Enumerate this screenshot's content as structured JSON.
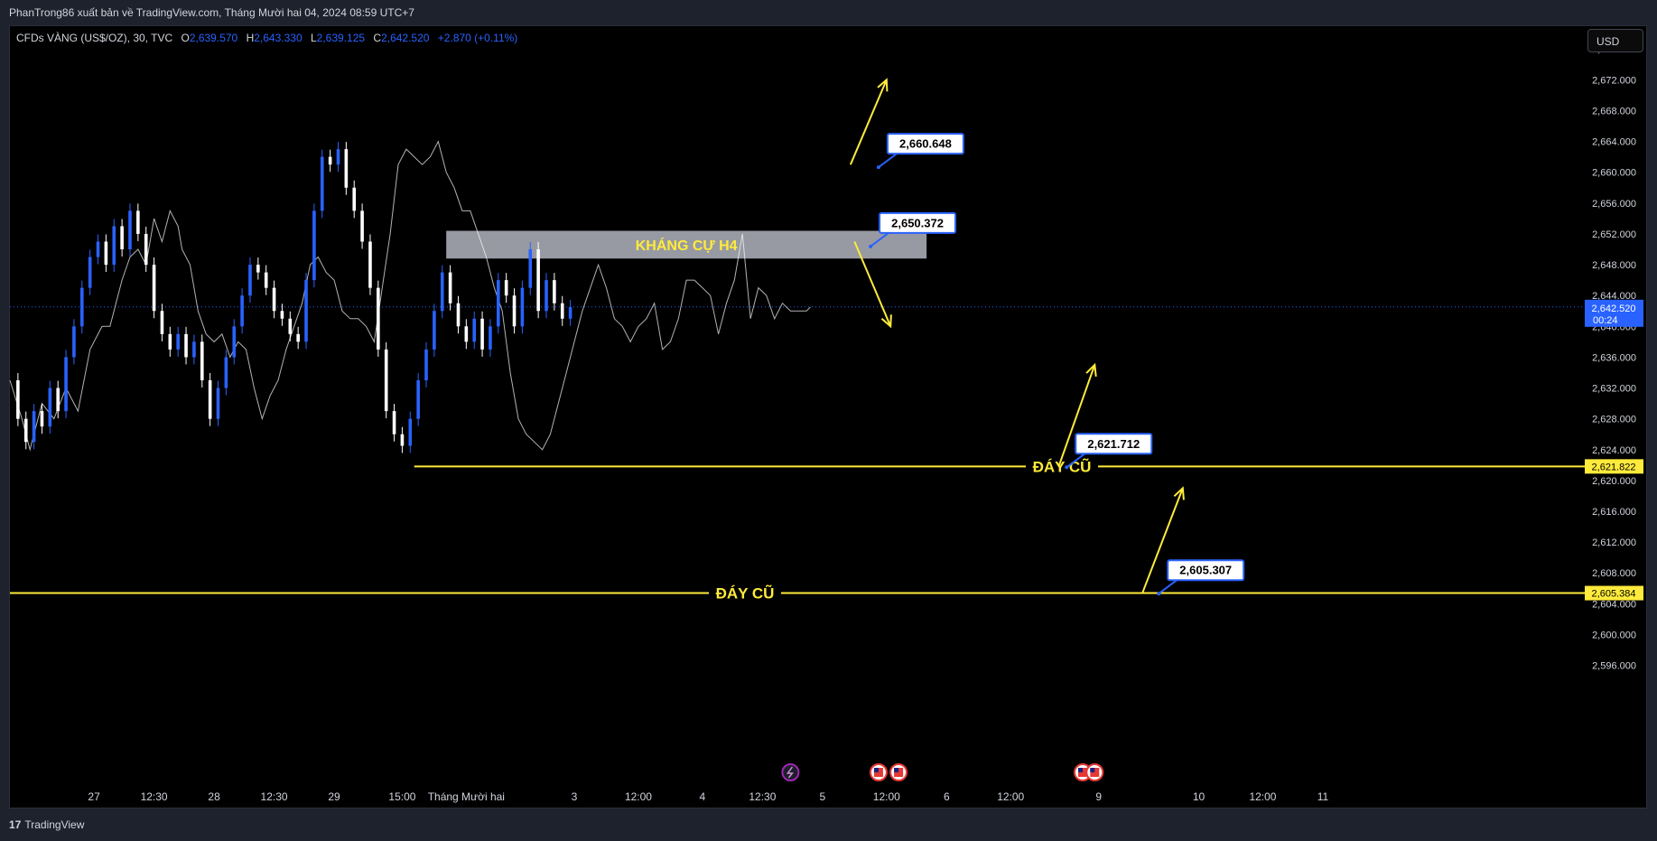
{
  "header": {
    "publish_text": "PhanTrong86 xuất bản về TradingView.com, Tháng Mười hai 04, 2024 08:59 UTC+7"
  },
  "legend": {
    "symbol": "CFDs VÀNG (US$/OZ), 30, TVC",
    "open_label": "O",
    "open": "2,639.570",
    "high_label": "H",
    "high": "2,643.330",
    "low_label": "L",
    "low": "2,639.125",
    "close_label": "C",
    "close": "2,642.520",
    "change": "+2.870 (+0.11%)"
  },
  "currency_button": {
    "label": "USD"
  },
  "footer": {
    "brand": "TradingView",
    "logo_text": "17"
  },
  "colors": {
    "background": "#000000",
    "up_candle": "#2962ff",
    "down_candle": "#ffffff",
    "annotation_yellow": "#ffeb3b",
    "resistance_zone": "#b2b5be",
    "price_line": "#2962ff"
  },
  "chart_data": {
    "type": "candlestick",
    "instrument": "CFDs VÀNG (US$/OZ)",
    "timeframe": "30",
    "source": "TVC",
    "y_range": [
      2595.6,
      2677.2
    ],
    "y_ticks": [
      2596,
      2600,
      2604,
      2608,
      2612,
      2616,
      2620,
      2624,
      2628,
      2632,
      2636,
      2640,
      2644,
      2648,
      2652,
      2656,
      2660,
      2664,
      2668,
      2672,
      2676
    ],
    "y_tick_labels": [
      "2,596.000",
      "2,600.000",
      "2,604.000",
      "2,608.000",
      "2,612.000",
      "2,616.000",
      "2,620.000",
      "2,624.000",
      "2,628.000",
      "2,632.000",
      "2,636.000",
      "2,640.000",
      "2,644.000",
      "2,648.000",
      "2,652.000",
      "2,656.000",
      "2,660.000",
      "2,664.000",
      "2,668.000",
      "2,672.000",
      "2,676.000"
    ],
    "x_range": [
      -21,
      314
    ],
    "x_ticks": [
      {
        "i": 0,
        "label": "27"
      },
      {
        "i": 15,
        "label": "12:30"
      },
      {
        "i": 30,
        "label": "28"
      },
      {
        "i": 45,
        "label": "12:30"
      },
      {
        "i": 60,
        "label": "29"
      },
      {
        "i": 77,
        "label": "15:00"
      },
      {
        "i": 93,
        "label": "Tháng Mười hai"
      },
      {
        "i": 120,
        "label": "3"
      },
      {
        "i": 136,
        "label": "12:00"
      },
      {
        "i": 152,
        "label": "4"
      },
      {
        "i": 167,
        "label": "12:30"
      },
      {
        "i": 182,
        "label": "5"
      },
      {
        "i": 198,
        "label": "12:00"
      },
      {
        "i": 213,
        "label": "6"
      },
      {
        "i": 229,
        "label": "12:00"
      },
      {
        "i": 251,
        "label": "9"
      },
      {
        "i": 276,
        "label": "10"
      },
      {
        "i": 292,
        "label": "12:00"
      },
      {
        "i": 307,
        "label": "11"
      }
    ],
    "price_path": [
      [
        -21,
        2633
      ],
      [
        -18,
        2628
      ],
      [
        -16,
        2624
      ],
      [
        -13,
        2630
      ],
      [
        -10,
        2628
      ],
      [
        -7,
        2632
      ],
      [
        -4,
        2629
      ],
      [
        -1,
        2637
      ],
      [
        2,
        2640
      ],
      [
        4,
        2640
      ],
      [
        7,
        2646
      ],
      [
        9,
        2649
      ],
      [
        11,
        2650
      ],
      [
        13,
        2648
      ],
      [
        15,
        2654
      ],
      [
        17,
        2651
      ],
      [
        19,
        2655
      ],
      [
        21,
        2653
      ],
      [
        22,
        2650
      ],
      [
        24,
        2648
      ],
      [
        26,
        2642
      ],
      [
        28,
        2639
      ],
      [
        30,
        2638
      ],
      [
        32,
        2639
      ],
      [
        34,
        2636
      ],
      [
        36,
        2638
      ],
      [
        38,
        2637
      ],
      [
        40,
        2632
      ],
      [
        42,
        2628
      ],
      [
        44,
        2631
      ],
      [
        46,
        2633
      ],
      [
        48,
        2637
      ],
      [
        50,
        2640
      ],
      [
        52,
        2643
      ],
      [
        54,
        2648
      ],
      [
        56,
        2649
      ],
      [
        58,
        2647
      ],
      [
        60,
        2646
      ],
      [
        62,
        2642
      ],
      [
        64,
        2641
      ],
      [
        66,
        2641
      ],
      [
        68,
        2640
      ],
      [
        70,
        2638
      ],
      [
        72,
        2645
      ],
      [
        74,
        2652
      ],
      [
        76,
        2661
      ],
      [
        78,
        2663
      ],
      [
        80,
        2662
      ],
      [
        82,
        2661
      ],
      [
        84,
        2662
      ],
      [
        86,
        2664
      ],
      [
        88,
        2660
      ],
      [
        90,
        2658
      ],
      [
        92,
        2655
      ],
      [
        94,
        2655
      ],
      [
        96,
        2652
      ],
      [
        98,
        2649
      ],
      [
        100,
        2645
      ],
      [
        102,
        2642
      ],
      [
        104,
        2634
      ],
      [
        106,
        2628
      ],
      [
        108,
        2626
      ],
      [
        110,
        2625
      ],
      [
        112,
        2624
      ],
      [
        114,
        2626
      ],
      [
        116,
        2630
      ],
      [
        118,
        2634
      ],
      [
        120,
        2638
      ],
      [
        122,
        2642
      ],
      [
        124,
        2645
      ],
      [
        126,
        2648
      ],
      [
        128,
        2645
      ],
      [
        130,
        2641
      ],
      [
        132,
        2640
      ],
      [
        134,
        2638
      ],
      [
        136,
        2640
      ],
      [
        138,
        2641
      ],
      [
        140,
        2643
      ],
      [
        142,
        2637
      ],
      [
        144,
        2638
      ],
      [
        146,
        2641
      ],
      [
        148,
        2646
      ],
      [
        150,
        2646
      ],
      [
        152,
        2645
      ],
      [
        154,
        2644
      ],
      [
        156,
        2639
      ],
      [
        158,
        2643
      ],
      [
        160,
        2646
      ],
      [
        162,
        2652
      ],
      [
        164,
        2641
      ],
      [
        166,
        2645
      ],
      [
        168,
        2644
      ],
      [
        170,
        2641
      ],
      [
        172,
        2643
      ],
      [
        174,
        2642
      ],
      [
        176,
        2642
      ],
      [
        178,
        2642
      ],
      [
        179,
        2642.52
      ]
    ],
    "candles": [
      {
        "i": -19,
        "o": 2633.0,
        "c": 2628.0
      },
      {
        "i": -17,
        "o": 2628.0,
        "c": 2625.0
      },
      {
        "i": -15,
        "o": 2625.0,
        "c": 2629.0
      },
      {
        "i": -13,
        "o": 2629.0,
        "c": 2627.0
      },
      {
        "i": -11,
        "o": 2627.0,
        "c": 2632.0
      },
      {
        "i": -9,
        "o": 2632.0,
        "c": 2629.0
      },
      {
        "i": -7,
        "o": 2629.0,
        "c": 2636.0
      },
      {
        "i": -5,
        "o": 2636.0,
        "c": 2640.0
      },
      {
        "i": -3,
        "o": 2640.0,
        "c": 2645.0
      },
      {
        "i": -1,
        "o": 2645.0,
        "c": 2649.0
      },
      {
        "i": 1,
        "o": 2649.0,
        "c": 2651.0
      },
      {
        "i": 3,
        "o": 2651.0,
        "c": 2648.0
      },
      {
        "i": 5,
        "o": 2648.0,
        "c": 2653.0
      },
      {
        "i": 7,
        "o": 2653.0,
        "c": 2650.0
      },
      {
        "i": 9,
        "o": 2650.0,
        "c": 2655.0
      },
      {
        "i": 11,
        "o": 2655.0,
        "c": 2652.0
      },
      {
        "i": 13,
        "o": 2652.0,
        "c": 2648.0
      },
      {
        "i": 15,
        "o": 2648.0,
        "c": 2642.0
      },
      {
        "i": 17,
        "o": 2642.0,
        "c": 2639.0
      },
      {
        "i": 19,
        "o": 2639.0,
        "c": 2637.0
      },
      {
        "i": 21,
        "o": 2637.0,
        "c": 2639.0
      },
      {
        "i": 23,
        "o": 2639.0,
        "c": 2636.0
      },
      {
        "i": 25,
        "o": 2636.0,
        "c": 2638.0
      },
      {
        "i": 27,
        "o": 2638.0,
        "c": 2633.0
      },
      {
        "i": 29,
        "o": 2633.0,
        "c": 2628.0
      },
      {
        "i": 31,
        "o": 2628.0,
        "c": 2632.0
      },
      {
        "i": 33,
        "o": 2632.0,
        "c": 2636.0
      },
      {
        "i": 35,
        "o": 2636.0,
        "c": 2640.0
      },
      {
        "i": 37,
        "o": 2640.0,
        "c": 2644.0
      },
      {
        "i": 39,
        "o": 2644.0,
        "c": 2648.0
      },
      {
        "i": 41,
        "o": 2648.0,
        "c": 2647.0
      },
      {
        "i": 43,
        "o": 2647.0,
        "c": 2645.0
      },
      {
        "i": 45,
        "o": 2645.0,
        "c": 2642.0
      },
      {
        "i": 47,
        "o": 2642.0,
        "c": 2641.0
      },
      {
        "i": 49,
        "o": 2641.0,
        "c": 2639.0
      },
      {
        "i": 51,
        "o": 2639.0,
        "c": 2638.0
      },
      {
        "i": 53,
        "o": 2638.0,
        "c": 2646.0
      },
      {
        "i": 55,
        "o": 2646.0,
        "c": 2655.0
      },
      {
        "i": 57,
        "o": 2655.0,
        "c": 2662.0
      },
      {
        "i": 59,
        "o": 2662.0,
        "c": 2661.0
      },
      {
        "i": 61,
        "o": 2661.0,
        "c": 2663.0
      },
      {
        "i": 63,
        "o": 2663.0,
        "c": 2658.0
      },
      {
        "i": 65,
        "o": 2658.0,
        "c": 2655.0
      },
      {
        "i": 67,
        "o": 2655.0,
        "c": 2651.0
      },
      {
        "i": 69,
        "o": 2651.0,
        "c": 2645.0
      },
      {
        "i": 71,
        "o": 2645.0,
        "c": 2637.0
      },
      {
        "i": 73,
        "o": 2637.0,
        "c": 2629.0
      },
      {
        "i": 75,
        "o": 2629.0,
        "c": 2626.0
      },
      {
        "i": 77,
        "o": 2626.0,
        "c": 2624.5
      },
      {
        "i": 79,
        "o": 2624.5,
        "c": 2628.0
      },
      {
        "i": 81,
        "o": 2628.0,
        "c": 2633.0
      },
      {
        "i": 83,
        "o": 2633.0,
        "c": 2637.0
      },
      {
        "i": 85,
        "o": 2637.0,
        "c": 2642.0
      },
      {
        "i": 87,
        "o": 2642.0,
        "c": 2647.0
      },
      {
        "i": 89,
        "o": 2647.0,
        "c": 2643.0
      },
      {
        "i": 91,
        "o": 2643.0,
        "c": 2640.0
      },
      {
        "i": 93,
        "o": 2640.0,
        "c": 2638.0
      },
      {
        "i": 95,
        "o": 2638.0,
        "c": 2641.0
      },
      {
        "i": 97,
        "o": 2641.0,
        "c": 2637.0
      },
      {
        "i": 99,
        "o": 2637.0,
        "c": 2640.0
      },
      {
        "i": 101,
        "o": 2640.0,
        "c": 2646.0
      },
      {
        "i": 103,
        "o": 2646.0,
        "c": 2644.0
      },
      {
        "i": 105,
        "o": 2644.0,
        "c": 2640.0
      },
      {
        "i": 107,
        "o": 2640.0,
        "c": 2645.0
      },
      {
        "i": 109,
        "o": 2645.0,
        "c": 2650.0
      },
      {
        "i": 111,
        "o": 2650.0,
        "c": 2642.0
      },
      {
        "i": 113,
        "o": 2642.0,
        "c": 2646.0
      },
      {
        "i": 115,
        "o": 2646.0,
        "c": 2643.0
      },
      {
        "i": 117,
        "o": 2643.0,
        "c": 2641.0
      },
      {
        "i": 119,
        "o": 2641.0,
        "c": 2642.5
      }
    ],
    "last_price": 2642.52,
    "last_price_label": "2,642.520",
    "countdown": "00:24",
    "resistance_zone": {
      "label": "KHÁNG CỰ H4",
      "from": 2648.8,
      "to": 2652.4,
      "x_start": 88,
      "x_end": 208
    },
    "support_lines": [
      {
        "label": "ĐÁY CŨ",
        "price": 2621.822,
        "price_label": "2,621.822",
        "x_start": 80
      },
      {
        "label": "ĐÁY CŨ",
        "price": 2605.384,
        "price_label": "2,605.384",
        "x_start": -21
      }
    ],
    "price_callouts": [
      {
        "label": "2,660.648",
        "anchor_x": 196,
        "anchor_y": 2660.648
      },
      {
        "label": "2,650.372",
        "anchor_x": 194,
        "anchor_y": 2650.372
      },
      {
        "label": "2,621.712",
        "anchor_x": 243,
        "anchor_y": 2621.712
      },
      {
        "label": "2,605.307",
        "anchor_x": 266,
        "anchor_y": 2605.307
      }
    ],
    "arrows": [
      {
        "from": [
          189,
          2661
        ],
        "to": [
          198,
          2672
        ]
      },
      {
        "from": [
          190,
          2651
        ],
        "to": [
          199,
          2640
        ]
      },
      {
        "from": [
          241,
          2621.8
        ],
        "to": [
          250,
          2635
        ]
      },
      {
        "from": [
          262,
          2605.5
        ],
        "to": [
          272,
          2619
        ]
      }
    ],
    "event_markers": [
      {
        "x": 174,
        "kind": "lightning"
      },
      {
        "x": 196,
        "kind": "us-flag"
      },
      {
        "x": 201,
        "kind": "us-flag"
      },
      {
        "x": 247,
        "kind": "us-flag"
      },
      {
        "x": 250,
        "kind": "us-flag"
      }
    ]
  }
}
